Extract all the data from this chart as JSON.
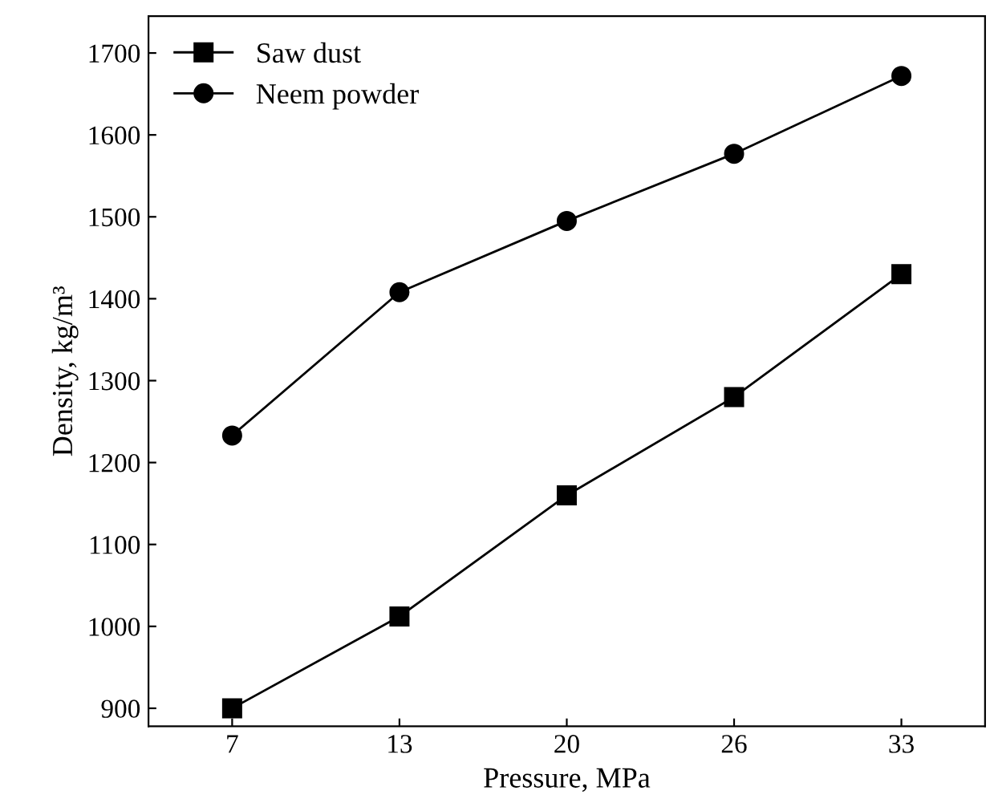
{
  "chart_data": {
    "type": "line",
    "xlabel": "Pressure, MPa",
    "ylabel": "Density, kg/m³",
    "categories": [
      "7",
      "13",
      "20",
      "26",
      "33"
    ],
    "series": [
      {
        "name": "Saw dust",
        "color": "#000000",
        "marker": "square",
        "values": [
          900,
          1012,
          1160,
          1280,
          1430
        ]
      },
      {
        "name": "Neem powder",
        "color": "#000000",
        "marker": "circle",
        "values": [
          1233,
          1408,
          1495,
          1577,
          1672
        ]
      }
    ],
    "ylim": [
      878,
      1745
    ],
    "yticks": [
      900,
      1000,
      1100,
      1200,
      1300,
      1400,
      1500,
      1600,
      1700
    ],
    "legend": "top left",
    "grid": false
  }
}
